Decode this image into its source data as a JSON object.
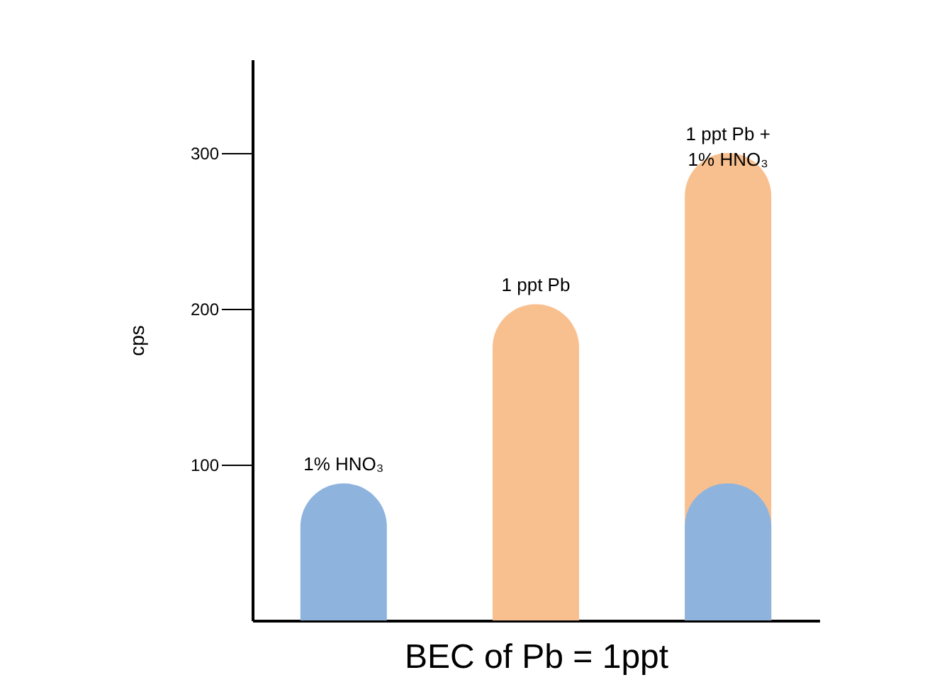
{
  "chart_data": {
    "type": "bar",
    "categories": [
      "1% HNO₃",
      "1 ppt Pb",
      "1 ppt Pb +\n1% HNO₃"
    ],
    "series": [
      {
        "color": "#f9c08f",
        "values": [
          null,
          203,
          300
        ]
      },
      {
        "color": "#8eb4de",
        "values": [
          88,
          null,
          88
        ]
      }
    ],
    "xlabel": "BEC of Pb = 1ppt",
    "ylabel": "cps",
    "ylim": [
      0,
      360
    ],
    "yticks": [
      100,
      200,
      300
    ],
    "grid": false
  }
}
